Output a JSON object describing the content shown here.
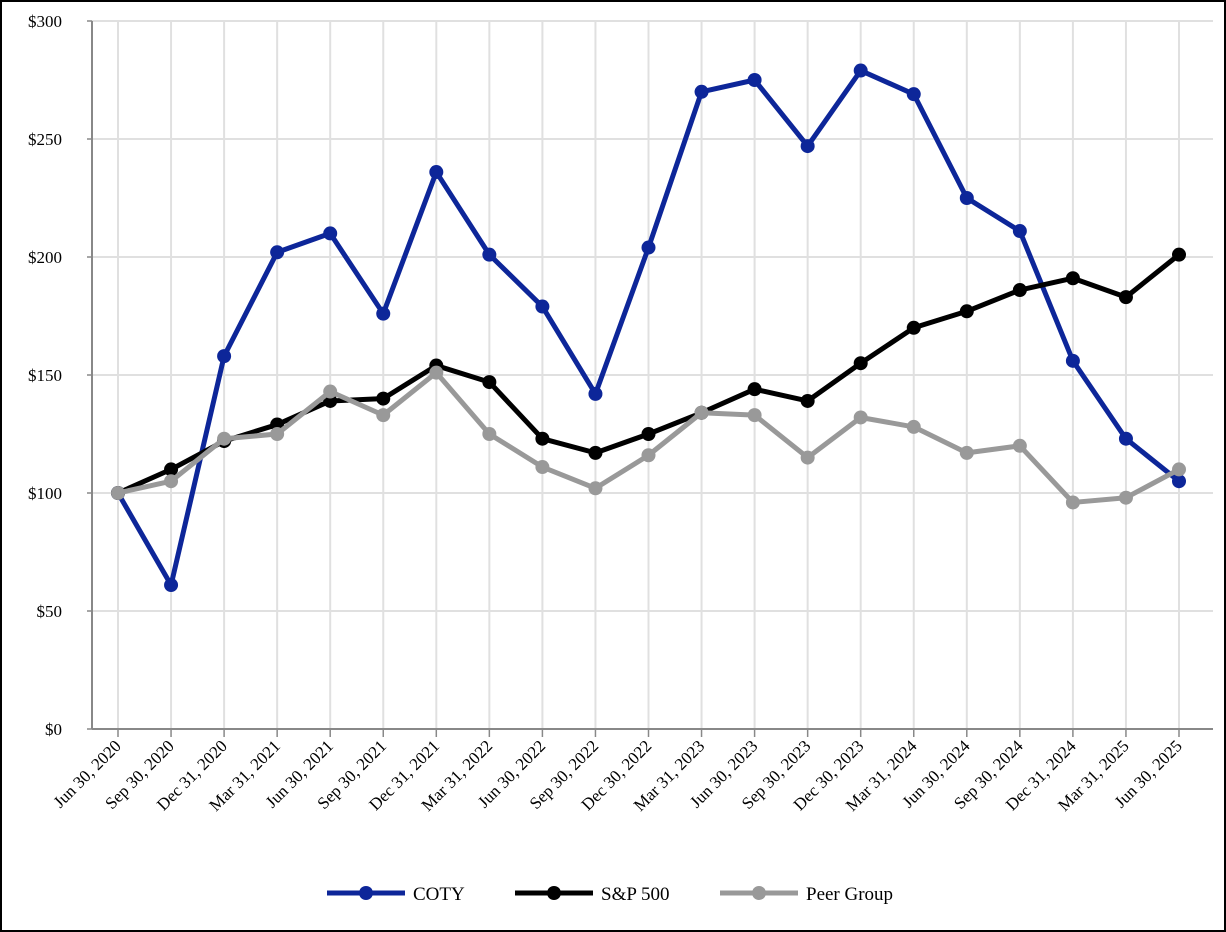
{
  "chart_data": {
    "type": "line",
    "title": "",
    "xlabel": "",
    "ylabel": "",
    "categories": [
      "Jun 30, 2020",
      "Sep 30, 2020",
      "Dec 31, 2020",
      "Mar 31, 2021",
      "Jun 30, 2021",
      "Sep 30, 2021",
      "Dec 31, 2021",
      "Mar 31, 2022",
      "Jun 30, 2022",
      "Sep 30, 2022",
      "Dec 30, 2022",
      "Mar 31, 2023",
      "Jun 30, 2023",
      "Sep 30, 2023",
      "Dec 30, 2023",
      "Mar 31, 2024",
      "Jun 30, 2024",
      "Sep 30, 2024",
      "Dec 31, 2024",
      "Mar 31, 2025",
      "Jun 30, 2025"
    ],
    "ylim": [
      0,
      300
    ],
    "yticks": [
      0,
      50,
      100,
      150,
      200,
      250,
      300
    ],
    "ytick_labels": [
      "$0",
      "$50",
      "$100",
      "$150",
      "$200",
      "$250",
      "$300"
    ],
    "grid": true,
    "legend_position": "bottom",
    "series": [
      {
        "name": "COTY",
        "color": "#0d2699",
        "values": [
          100,
          61,
          158,
          202,
          210,
          176,
          236,
          201,
          179,
          142,
          204,
          270,
          275,
          247,
          279,
          269,
          225,
          211,
          156,
          123,
          105
        ]
      },
      {
        "name": "S&P 500",
        "color": "#000000",
        "values": [
          100,
          110,
          122,
          129,
          139,
          140,
          154,
          147,
          123,
          117,
          125,
          134,
          144,
          139,
          155,
          170,
          177,
          186,
          191,
          183,
          201
        ]
      },
      {
        "name": "Peer Group",
        "color": "#999999",
        "values": [
          100,
          105,
          123,
          125,
          143,
          133,
          151,
          125,
          111,
          102,
          116,
          134,
          133,
          115,
          132,
          128,
          117,
          120,
          96,
          98,
          110
        ]
      }
    ]
  }
}
